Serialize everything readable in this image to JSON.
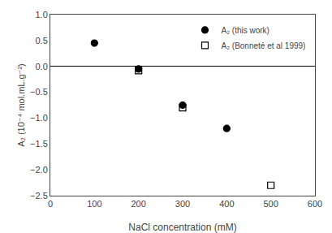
{
  "chart_data": {
    "type": "scatter",
    "xlabel": "NaCl concentration (mM)",
    "ylabel": "A₂ (10⁻⁴ mol.mL.g⁻²)",
    "xlim": [
      0,
      600
    ],
    "ylim": [
      -2.5,
      1.0
    ],
    "xticks": [
      0,
      100,
      200,
      300,
      400,
      500,
      600
    ],
    "yticks": [
      -2.5,
      {
        "value": -2.0,
        "label": "−2.0"
      },
      -1.5,
      {
        "value": -1.0,
        "label": "−1.0"
      },
      -0.5,
      {
        "value": 0.0,
        "label": "0.0"
      },
      0.5,
      {
        "value": 1.0,
        "label": "1.0"
      }
    ],
    "grid": false,
    "legend": "upper right",
    "series": [
      {
        "name": "A₂ (this work)",
        "color": "black",
        "marker": "circle",
        "x": [
          100,
          200,
          300,
          400
        ],
        "values": [
          0.45,
          -0.05,
          -0.75,
          -1.2
        ]
      },
      {
        "name": "A₂ (Bonneté et al 1999)",
        "color": "black",
        "marker": "square-open",
        "x": [
          200,
          300,
          500
        ],
        "values": [
          -0.08,
          -0.8,
          -2.3
        ]
      }
    ]
  }
}
